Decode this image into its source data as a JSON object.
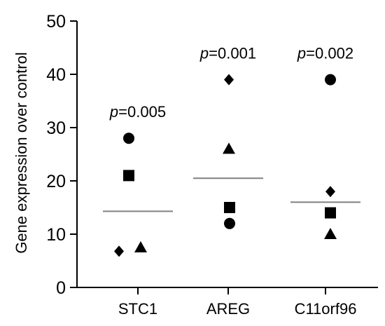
{
  "chart_data": {
    "type": "scatter",
    "title": "",
    "ylabel": "Gene expression over control",
    "xlabel": "",
    "ylim": [
      0,
      50
    ],
    "yticks": [
      0,
      10,
      20,
      30,
      40,
      50
    ],
    "grid": false,
    "categories": [
      "STC1",
      "AREG",
      "C11orf96"
    ],
    "groups": [
      {
        "category": "STC1",
        "p_prefix": "p",
        "p_value": "=0.005",
        "mean": 14.3,
        "points": [
          {
            "marker": "circle",
            "value": 28
          },
          {
            "marker": "square",
            "value": 21
          },
          {
            "marker": "triangle",
            "value": 7.5
          },
          {
            "marker": "diamond",
            "value": 6.8
          }
        ]
      },
      {
        "category": "AREG",
        "p_prefix": "p",
        "p_value": "=0.001",
        "mean": 20.5,
        "points": [
          {
            "marker": "diamond",
            "value": 39
          },
          {
            "marker": "triangle",
            "value": 26
          },
          {
            "marker": "square",
            "value": 15
          },
          {
            "marker": "circle",
            "value": 12
          }
        ]
      },
      {
        "category": "C11orf96",
        "p_prefix": "p",
        "p_value": "=0.002",
        "mean": 16,
        "points": [
          {
            "marker": "circle",
            "value": 39
          },
          {
            "marker": "diamond",
            "value": 18
          },
          {
            "marker": "square",
            "value": 14
          },
          {
            "marker": "triangle",
            "value": 10
          }
        ]
      }
    ],
    "colors": {
      "marker": "#000000",
      "mean_line": "#808080",
      "axis": "#000000"
    }
  }
}
